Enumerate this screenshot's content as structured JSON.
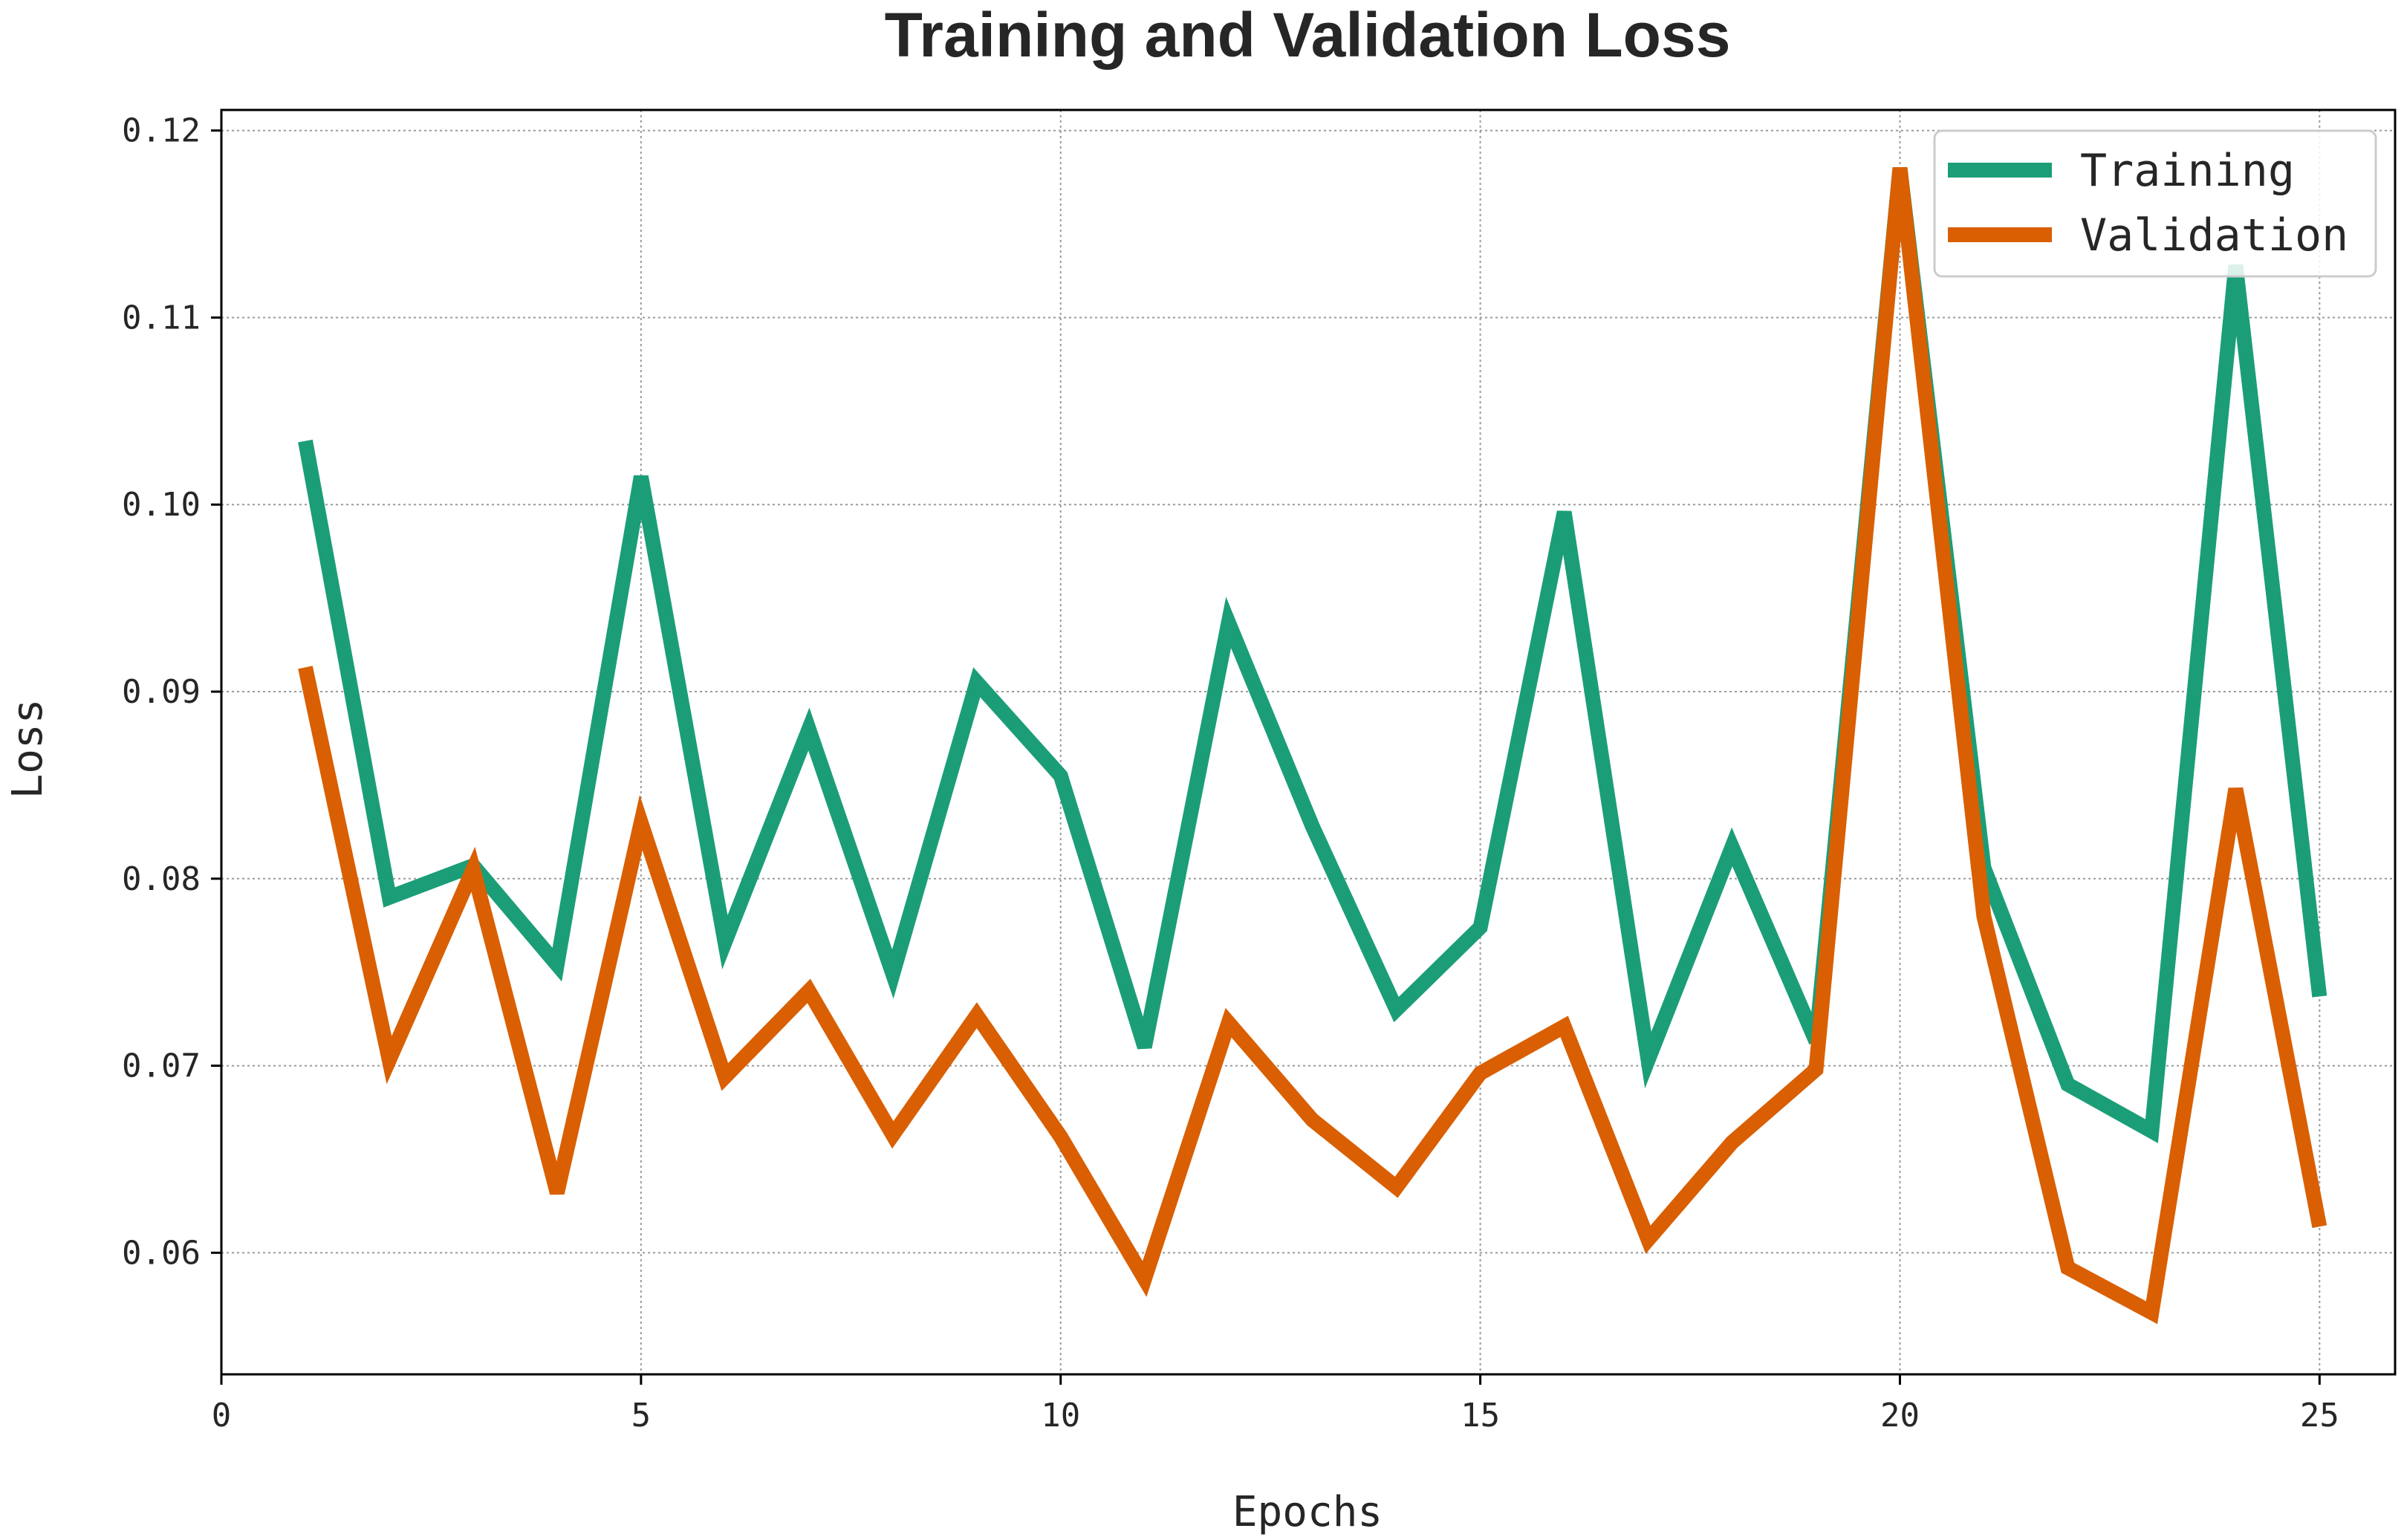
{
  "chart_data": {
    "type": "line",
    "title": "Training and Validation Loss",
    "xlabel": "Epochs",
    "ylabel": "Loss",
    "xlim": [
      0,
      25.9
    ],
    "ylim": [
      0.0535,
      0.1211
    ],
    "xticks": [
      0,
      5,
      10,
      15,
      20,
      25
    ],
    "xtick_labels": [
      "0",
      "5",
      "10",
      "15",
      "20",
      "25"
    ],
    "yticks": [
      0.06,
      0.07,
      0.08,
      0.09,
      0.1,
      0.11,
      0.12
    ],
    "ytick_labels": [
      "0.06",
      "0.07",
      "0.08",
      "0.09",
      "0.10",
      "0.11",
      "0.12"
    ],
    "grid": true,
    "legend_position": "top-right",
    "x": [
      1,
      2,
      3,
      4,
      5,
      6,
      7,
      8,
      9,
      10,
      11,
      12,
      13,
      14,
      15,
      16,
      17,
      18,
      19,
      20,
      21,
      22,
      23,
      24,
      25
    ],
    "series": [
      {
        "name": "Training",
        "color": "#1b9e77",
        "values": [
          0.1034,
          0.079,
          0.0807,
          0.0754,
          0.1015,
          0.0766,
          0.088,
          0.0749,
          0.0905,
          0.0855,
          0.071,
          0.0937,
          0.0828,
          0.073,
          0.0774,
          0.0996,
          0.0703,
          0.0817,
          0.0713,
          0.118,
          0.0806,
          0.069,
          0.0665,
          0.1128,
          0.0737
        ]
      },
      {
        "name": "Validation",
        "color": "#d95f02",
        "values": [
          0.0913,
          0.0703,
          0.0805,
          0.0632,
          0.083,
          0.0694,
          0.074,
          0.0663,
          0.0727,
          0.0662,
          0.0586,
          0.0723,
          0.0671,
          0.0635,
          0.0696,
          0.0721,
          0.0607,
          0.0659,
          0.0698,
          0.118,
          0.078,
          0.0592,
          0.0568,
          0.0848,
          0.0614
        ]
      }
    ]
  }
}
